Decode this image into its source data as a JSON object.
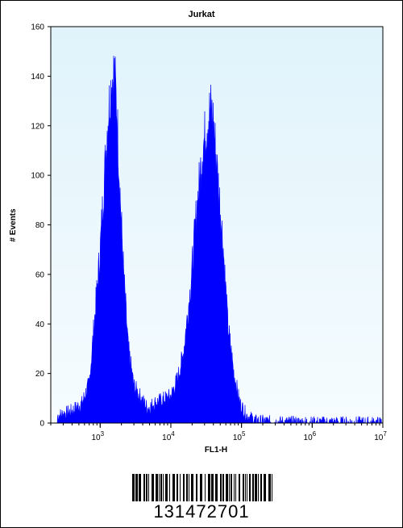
{
  "chart_data": {
    "type": "area",
    "title": "Jurkat",
    "xlabel": "FL1-H",
    "ylabel": "# Events",
    "x_scale": "log",
    "xlim": [
      200,
      10000000
    ],
    "ylim": [
      0,
      160
    ],
    "yticks": [
      "0",
      "20",
      "40",
      "60",
      "80",
      "100",
      "120",
      "140",
      "160"
    ],
    "xticks": [
      {
        "base": "10",
        "exp": "3",
        "value": 1000
      },
      {
        "base": "10",
        "exp": "4",
        "value": 10000
      },
      {
        "base": "10",
        "exp": "5",
        "value": 100000
      },
      {
        "base": "10",
        "exp": "6",
        "value": 1000000
      },
      {
        "base": "10",
        "exp": "7",
        "value": 10000000
      }
    ],
    "grid": false,
    "series": [
      {
        "values": [
          {
            "x": 250,
            "y": 3
          },
          {
            "x": 400,
            "y": 5
          },
          {
            "x": 550,
            "y": 8
          },
          {
            "x": 700,
            "y": 16
          },
          {
            "x": 850,
            "y": 45
          },
          {
            "x": 1000,
            "y": 70
          },
          {
            "x": 1150,
            "y": 100
          },
          {
            "x": 1300,
            "y": 125
          },
          {
            "x": 1450,
            "y": 138
          },
          {
            "x": 1580,
            "y": 142
          },
          {
            "x": 1700,
            "y": 130
          },
          {
            "x": 1900,
            "y": 95
          },
          {
            "x": 2150,
            "y": 60
          },
          {
            "x": 2500,
            "y": 30
          },
          {
            "x": 3000,
            "y": 15
          },
          {
            "x": 3800,
            "y": 10
          },
          {
            "x": 4700,
            "y": 6
          },
          {
            "x": 5800,
            "y": 8
          },
          {
            "x": 7000,
            "y": 9
          },
          {
            "x": 8500,
            "y": 10
          },
          {
            "x": 10000,
            "y": 11
          },
          {
            "x": 12500,
            "y": 18
          },
          {
            "x": 15000,
            "y": 28
          },
          {
            "x": 19000,
            "y": 55
          },
          {
            "x": 23000,
            "y": 85
          },
          {
            "x": 28000,
            "y": 110
          },
          {
            "x": 33000,
            "y": 122
          },
          {
            "x": 36500,
            "y": 127
          },
          {
            "x": 40000,
            "y": 122
          },
          {
            "x": 46000,
            "y": 100
          },
          {
            "x": 54000,
            "y": 75
          },
          {
            "x": 64000,
            "y": 40
          },
          {
            "x": 78000,
            "y": 20
          },
          {
            "x": 95000,
            "y": 8
          },
          {
            "x": 120000,
            "y": 3
          },
          {
            "x": 160000,
            "y": 1
          },
          {
            "x": 300000,
            "y": 0.5
          },
          {
            "x": 1000000,
            "y": 0.3
          },
          {
            "x": 10000000,
            "y": 0.2
          }
        ]
      }
    ],
    "colors": {
      "fill": "#0000ff",
      "plot_bg_top": "#e0f3fb",
      "plot_bg_bottom": "#f6fcff",
      "axis": "#000000"
    }
  },
  "barcode": {
    "number": "131472701"
  }
}
